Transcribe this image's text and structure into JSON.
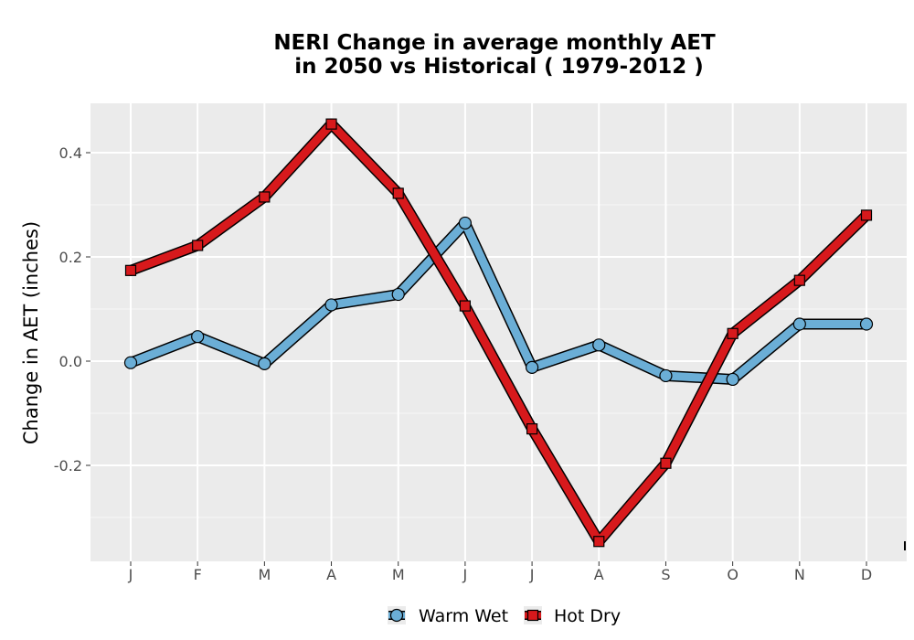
{
  "chart_data": {
    "type": "line",
    "title_line1": "NERI  Change in average monthly AET",
    "title_line2": "in 2050 vs Historical ( 1979-2012 )",
    "xlabel": "",
    "ylabel": "Change in AET (inches)",
    "categories": [
      "J",
      "F",
      "M",
      "A",
      "M",
      "J",
      "J",
      "A",
      "S",
      "O",
      "N",
      "D"
    ],
    "y_ticks": [
      -0.2,
      0.0,
      0.2,
      0.4
    ],
    "y_tick_labels": [
      "-0.2",
      "0.0",
      "0.2",
      "0.4"
    ],
    "ylim": [
      -0.38,
      0.5
    ],
    "grid": true,
    "legend_position": "bottom",
    "series": [
      {
        "name": "Warm Wet",
        "color": "#6baed6",
        "marker": "circle",
        "values": [
          -0.003,
          0.047,
          -0.005,
          0.108,
          0.128,
          0.265,
          -0.012,
          0.031,
          -0.028,
          -0.035,
          0.071,
          0.071
        ]
      },
      {
        "name": "Hot Dry",
        "color": "#d7191c",
        "marker": "square",
        "values": [
          0.174,
          0.222,
          0.315,
          0.455,
          0.322,
          0.106,
          -0.13,
          -0.346,
          -0.196,
          0.053,
          0.155,
          0.28
        ]
      }
    ]
  }
}
